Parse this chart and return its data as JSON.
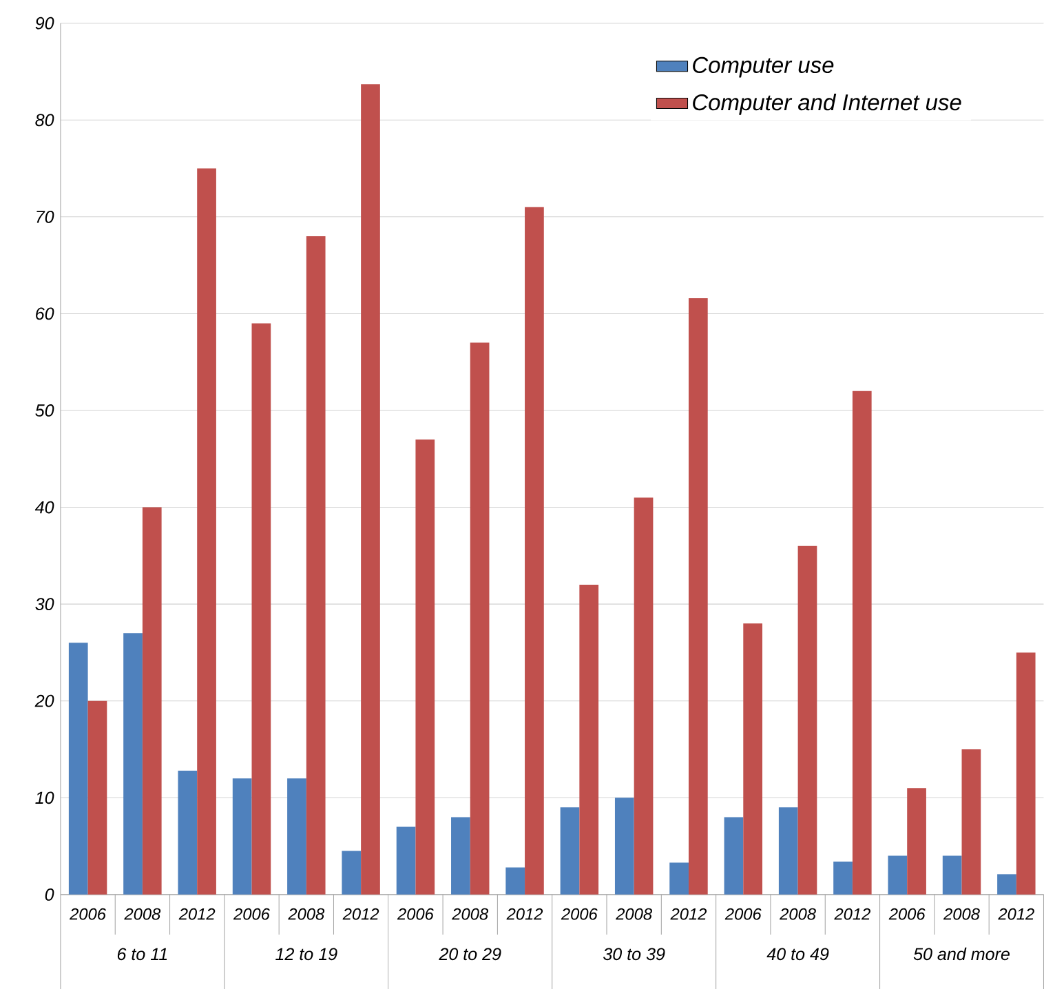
{
  "chart_data": {
    "type": "bar",
    "categories": [
      "2006",
      "2008",
      "2012",
      "2006",
      "2008",
      "2012",
      "2006",
      "2008",
      "2012",
      "2006",
      "2008",
      "2012",
      "2006",
      "2008",
      "2012",
      "2006",
      "2008",
      "2012"
    ],
    "series": [
      {
        "name": "Computer use",
        "color": "#4f81bd",
        "values": [
          26,
          27,
          12.8,
          12,
          12,
          4.5,
          7,
          8,
          2.8,
          9,
          10,
          3.3,
          8,
          9,
          3.4,
          4,
          4,
          2.1
        ]
      },
      {
        "name": "Computer and Internet use",
        "color": "#c0504d",
        "values": [
          20,
          40,
          75,
          59,
          68,
          83.7,
          47,
          57,
          71,
          32,
          41,
          61.6,
          28,
          36,
          52,
          11,
          15,
          25
        ]
      }
    ],
    "annotations": [
      "6 to 11",
      "12 to 19",
      "20 to 29",
      "30 to 39",
      "40 to 49",
      "50 and more"
    ],
    "ylim": [
      0,
      90
    ],
    "yticks": [
      0,
      10,
      20,
      30,
      40,
      50,
      60,
      70,
      80,
      90
    ],
    "grid": "y",
    "legend": "top right"
  }
}
